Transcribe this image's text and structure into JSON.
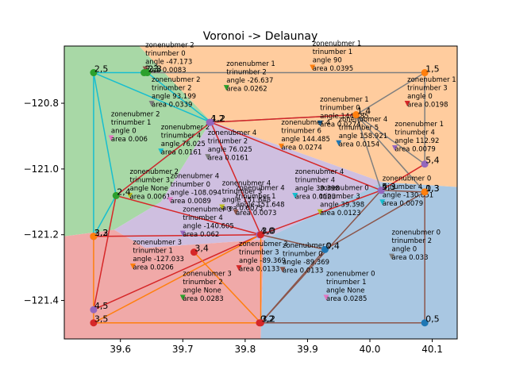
{
  "chart_data": {
    "type": "scatter",
    "title": "Voronoi -> Delaunay",
    "xlabel": "",
    "ylabel": "",
    "xlim": [
      39.51,
      40.14
    ],
    "ylim": [
      -121.517,
      -120.626
    ],
    "xticks": [
      "39.6",
      "39.7",
      "39.8",
      "39.9",
      "40.0",
      "40.1"
    ],
    "xtick_values": [
      39.6,
      39.7,
      39.8,
      39.9,
      40.0,
      40.1
    ],
    "yticks": [
      "−120.8",
      "−121.0",
      "−121.2",
      "−121.4"
    ],
    "ytick_values": [
      -120.8,
      -121.0,
      -121.2,
      -121.4
    ],
    "grid": false,
    "colors": {
      "region_green": "#a8d8a6",
      "region_orange": "#ffcc9e",
      "region_purple": "#cfbfe0",
      "region_red": "#f0a9a8",
      "region_blue": "#a9c7e2",
      "edge_cyan": "#17becf",
      "edge_gray": "#7f7f7f",
      "edge_red": "#d62728",
      "edge_orange": "#ff7f0e",
      "edge_brown": "#8c564b"
    },
    "regions": [
      {
        "color": "#a8d8a6",
        "poly": [
          [
            39.51,
            -120.626
          ],
          [
            39.63,
            -120.626
          ],
          [
            39.745,
            -120.855
          ],
          [
            39.665,
            -121.1
          ],
          [
            39.59,
            -121.185
          ],
          [
            39.51,
            -121.205
          ]
        ]
      },
      {
        "color": "#ffcc9e",
        "poly": [
          [
            39.63,
            -120.626
          ],
          [
            40.14,
            -120.626
          ],
          [
            40.14,
            -121.055
          ],
          [
            40.02,
            -121.04
          ],
          [
            39.745,
            -120.855
          ]
        ]
      },
      {
        "color": "#cfbfe0",
        "poly": [
          [
            39.745,
            -120.855
          ],
          [
            40.02,
            -121.04
          ],
          [
            39.83,
            -121.215
          ],
          [
            39.64,
            -121.24
          ],
          [
            39.59,
            -121.185
          ],
          [
            39.665,
            -121.1
          ]
        ]
      },
      {
        "color": "#f0a9a8",
        "poly": [
          [
            39.51,
            -121.205
          ],
          [
            39.59,
            -121.185
          ],
          [
            39.64,
            -121.24
          ],
          [
            39.83,
            -121.215
          ],
          [
            39.825,
            -121.517
          ],
          [
            39.51,
            -121.517
          ]
        ]
      },
      {
        "color": "#a9c7e2",
        "poly": [
          [
            39.83,
            -121.215
          ],
          [
            40.02,
            -121.04
          ],
          [
            40.14,
            -121.055
          ],
          [
            40.14,
            -121.517
          ],
          [
            39.825,
            -121.517
          ]
        ]
      }
    ],
    "points": [
      {
        "label": "2,5",
        "x": 39.557,
        "y": -120.707,
        "color": "#2ca02c",
        "marker": "circle"
      },
      {
        "label": "2,3",
        "x": 39.638,
        "y": -120.707,
        "color": "#2ca02c",
        "marker": "circle"
      },
      {
        "label": "2,3",
        "x": 39.643,
        "y": -120.707,
        "color": "#2ca02c",
        "marker": "circle"
      },
      {
        "label": "2,4",
        "x": 39.593,
        "y": -121.081,
        "color": "#2ca02c",
        "marker": "circle"
      },
      {
        "label": "2,2",
        "x": 39.557,
        "y": -121.205,
        "color": "#d62728",
        "marker": "circle"
      },
      {
        "label": "3,3",
        "x": 39.557,
        "y": -121.205,
        "color": "#ff7f0e",
        "marker": "circle"
      },
      {
        "label": "4,2",
        "x": 39.743,
        "y": -120.858,
        "color": "#9467bd",
        "marker": "circle"
      },
      {
        "label": "1,2",
        "x": 39.745,
        "y": -120.858,
        "color": "#9467bd",
        "marker": "circle"
      },
      {
        "label": "1,5",
        "x": 40.088,
        "y": -120.707,
        "color": "#ff7f0e",
        "marker": "circle"
      },
      {
        "label": "1,4",
        "x": 39.978,
        "y": -120.835,
        "color": "#ff7f0e",
        "marker": "circle"
      },
      {
        "label": "5,4",
        "x": 40.088,
        "y": -120.985,
        "color": "#9467bd",
        "marker": "circle"
      },
      {
        "label": "4,3",
        "x": 40.018,
        "y": -121.065,
        "color": "#9467bd",
        "marker": "circle"
      },
      {
        "label": "5,3",
        "x": 40.018,
        "y": -121.065,
        "color": "#9467bd",
        "marker": "circle"
      },
      {
        "label": "0,3",
        "x": 40.088,
        "y": -121.07,
        "color": "#ff7f0e",
        "marker": "circle"
      },
      {
        "label": "1,3",
        "x": 40.088,
        "y": -121.07,
        "color": "#ff7f0e",
        "marker": "circle"
      },
      {
        "label": "4,0",
        "x": 39.823,
        "y": -121.2,
        "color": "#9467bd",
        "marker": "circle"
      },
      {
        "label": "3,0",
        "x": 39.825,
        "y": -121.2,
        "color": "#d62728",
        "marker": "circle"
      },
      {
        "label": "0,4",
        "x": 39.928,
        "y": -121.245,
        "color": "#1f77b4",
        "marker": "circle"
      },
      {
        "label": "3,4",
        "x": 39.718,
        "y": -121.253,
        "color": "#d62728",
        "marker": "circle"
      },
      {
        "label": "4,5",
        "x": 39.557,
        "y": -121.428,
        "color": "#9467bd",
        "marker": "circle"
      },
      {
        "label": "3,5",
        "x": 39.557,
        "y": -121.468,
        "color": "#d62728",
        "marker": "circle"
      },
      {
        "label": "0,2",
        "x": 39.823,
        "y": -121.468,
        "color": "#d62728",
        "marker": "circle"
      },
      {
        "label": "3,2",
        "x": 39.825,
        "y": -121.468,
        "color": "#d62728",
        "marker": "circle"
      },
      {
        "label": "0,5",
        "x": 40.088,
        "y": -121.468,
        "color": "#1f77b4",
        "marker": "circle"
      }
    ],
    "annotations": [
      {
        "lines": [
          "zonenubmer 2",
          "trinumber 0",
          "angle -47.173",
          "area 0.0083"
        ],
        "x": 39.64,
        "y": -120.695,
        "marker_color": "#8c564b"
      },
      {
        "lines": [
          "zonenubmer 1",
          "trinumber 1",
          "angle 90",
          "area 0.0395"
        ],
        "x": 39.908,
        "y": -120.69,
        "marker_color": "#ff7f0e"
      },
      {
        "lines": [
          "zonenubmer 1",
          "trinumber 2",
          "angle -26.637",
          "area 0.0262"
        ],
        "x": 39.77,
        "y": -120.752,
        "marker_color": "#2ca02c"
      },
      {
        "lines": [
          "zonenubmer 2",
          "trinumber 2",
          "angle 93.199",
          "area 0.0339"
        ],
        "x": 39.65,
        "y": -120.8,
        "marker_color": "#7f7f7f"
      },
      {
        "lines": [
          "zonenubmer 1",
          "trinumber 3",
          "angle 0",
          "area 0.0198"
        ],
        "x": 40.06,
        "y": -120.8,
        "marker_color": "#d62728"
      },
      {
        "lines": [
          "zonenubmer 1",
          "trinumber 0",
          "angle 144.485",
          "area 0.0274"
        ],
        "x": 39.92,
        "y": -120.86,
        "marker_color": "#1f77b4"
      },
      {
        "lines": [
          "zonenubmer 4",
          "trinumber 5",
          "angle 158.921",
          "area 0.0154"
        ],
        "x": 39.95,
        "y": -120.92,
        "marker_color": "#1f77b4"
      },
      {
        "lines": [
          "zonenubmer 2",
          "trinumber 1",
          "angle 0",
          "area 0.006"
        ],
        "x": 39.585,
        "y": -120.905,
        "marker_color": "#e377c2"
      },
      {
        "lines": [
          "zonenubmer 1",
          "trinumber 4",
          "angle 112.92",
          "area 0.0079"
        ],
        "x": 40.04,
        "y": -120.935,
        "marker_color": "#9467bd"
      },
      {
        "lines": [
          "zonenubmer 4",
          "trinumber 6",
          "angle 144.485",
          "area 0.0274"
        ],
        "x": 39.858,
        "y": -120.93,
        "marker_color": "#ff7f0e"
      },
      {
        "lines": [
          "zonenubmer 2",
          "trinumber 4",
          "angle 76.025",
          "area 0.0161"
        ],
        "x": 39.665,
        "y": -120.945,
        "marker_color": "#17becf"
      },
      {
        "lines": [
          "zonenubmer 4",
          "trinumber 2",
          "angle 76.025",
          "area 0.0161"
        ],
        "x": 39.74,
        "y": -120.962,
        "marker_color": "#7f7f7f"
      },
      {
        "lines": [
          "zonenubmer 2",
          "trinumber 3",
          "angle None",
          "area 0.0061"
        ],
        "x": 39.615,
        "y": -121.08,
        "marker_color": "#bcbd22"
      },
      {
        "lines": [
          "zonenubmer 4",
          "trinumber 0",
          "angle -108.094",
          "area 0.0089"
        ],
        "x": 39.68,
        "y": -121.093,
        "marker_color": "#e377c2"
      },
      {
        "lines": [
          "zonenubmer 4",
          "trinumber 4",
          "angle 39.398",
          "area 0.0123"
        ],
        "x": 39.88,
        "y": -121.08,
        "marker_color": "#17becf"
      },
      {
        "lines": [
          "zonenubmer 0",
          "trinumber 3",
          "angle 39.398",
          "area 0.0123"
        ],
        "x": 39.92,
        "y": -121.13,
        "marker_color": "#bcbd22"
      },
      {
        "lines": [
          "zonenubmer 0",
          "trinumber 4",
          "angle -130.851",
          "area 0.0079"
        ],
        "x": 40.02,
        "y": -121.1,
        "marker_color": "#17becf"
      },
      {
        "lines": [
          "zonenubmer 4",
          "trinumber 3",
          "angle 151.648",
          "area 0.0073"
        ],
        "x": 39.763,
        "y": -121.115,
        "marker_color": "#bcbd22"
      },
      {
        "lines": [
          "zonenubmer 4",
          "trinumber 1",
          "angle 151.648",
          "area 0.0073"
        ],
        "x": 39.785,
        "y": -121.13,
        "marker_color": "#8c564b"
      },
      {
        "lines": [
          "zonenubmer 3",
          "trinumber 4",
          "angle -140.605",
          "area 0.062"
        ],
        "x": 39.7,
        "y": -121.195,
        "marker_color": "#9467bd"
      },
      {
        "lines": [
          "zonenubmer 3",
          "trinumber 1",
          "angle -127.033",
          "area 0.0206"
        ],
        "x": 39.62,
        "y": -121.295,
        "marker_color": "#ff7f0e"
      },
      {
        "lines": [
          "zonenubmer 3",
          "trinumber 3",
          "angle -89.369",
          "area 0.0133"
        ],
        "x": 39.79,
        "y": -121.3,
        "marker_color": "#d62728"
      },
      {
        "lines": [
          "zonenubmer 0",
          "trinumber 0",
          "angle -89.369",
          "area 0.0133"
        ],
        "x": 39.86,
        "y": -121.305,
        "marker_color": "#8c564b"
      },
      {
        "lines": [
          "zonenubmer 0",
          "trinumber 2",
          "angle 0",
          "area 0.033"
        ],
        "x": 40.035,
        "y": -121.265,
        "marker_color": "#7f7f7f"
      },
      {
        "lines": [
          "zonenubmer 3",
          "trinumber 2",
          "angle None",
          "area 0.0283"
        ],
        "x": 39.7,
        "y": -121.39,
        "marker_color": "#2ca02c"
      },
      {
        "lines": [
          "zonenubmer 0",
          "trinumber 1",
          "angle None",
          "area 0.0285"
        ],
        "x": 39.93,
        "y": -121.39,
        "marker_color": "#e377c2"
      }
    ],
    "edges": [
      {
        "color": "#17becf",
        "path": [
          [
            39.557,
            -120.707
          ],
          [
            39.643,
            -120.707
          ],
          [
            39.745,
            -120.858
          ],
          [
            39.557,
            -120.707
          ],
          [
            39.593,
            -121.081
          ],
          [
            39.745,
            -120.858
          ]
        ]
      },
      {
        "color": "#17becf",
        "path": [
          [
            39.557,
            -120.707
          ],
          [
            39.557,
            -121.205
          ]
        ]
      },
      {
        "color": "#17becf",
        "path": [
          [
            39.593,
            -121.081
          ],
          [
            39.557,
            -121.205
          ]
        ]
      },
      {
        "color": "#7f7f7f",
        "path": [
          [
            39.643,
            -120.707
          ],
          [
            40.088,
            -120.707
          ],
          [
            39.978,
            -120.835
          ],
          [
            39.745,
            -120.858
          ]
        ]
      },
      {
        "color": "#7f7f7f",
        "path": [
          [
            40.088,
            -120.707
          ],
          [
            40.088,
            -120.985
          ],
          [
            39.978,
            -120.835
          ],
          [
            40.088,
            -121.07
          ]
        ]
      },
      {
        "color": "#7f7f7f",
        "path": [
          [
            39.978,
            -120.835
          ],
          [
            40.018,
            -121.065
          ]
        ]
      },
      {
        "color": "#d62728",
        "path": [
          [
            39.745,
            -120.858
          ],
          [
            40.018,
            -121.065
          ],
          [
            39.825,
            -121.2
          ],
          [
            39.745,
            -120.858
          ],
          [
            39.593,
            -121.081
          ],
          [
            39.825,
            -121.2
          ]
        ]
      },
      {
        "color": "#d62728",
        "path": [
          [
            40.018,
            -121.065
          ],
          [
            40.088,
            -120.985
          ]
        ]
      },
      {
        "color": "#d62728",
        "path": [
          [
            39.745,
            -120.858
          ],
          [
            39.978,
            -120.835
          ]
        ]
      },
      {
        "color": "#d62728",
        "path": [
          [
            39.593,
            -121.081
          ],
          [
            39.557,
            -121.428
          ],
          [
            39.825,
            -121.2
          ]
        ]
      },
      {
        "color": "#d62728",
        "path": [
          [
            39.557,
            -121.205
          ],
          [
            39.825,
            -121.2
          ]
        ]
      },
      {
        "color": "#ff7f0e",
        "path": [
          [
            39.557,
            -121.205
          ],
          [
            39.557,
            -121.468
          ],
          [
            39.825,
            -121.468
          ],
          [
            39.825,
            -121.2
          ]
        ]
      },
      {
        "color": "#ff7f0e",
        "path": [
          [
            39.557,
            -121.468
          ],
          [
            39.825,
            -121.2
          ]
        ]
      },
      {
        "color": "#ff7f0e",
        "path": [
          [
            39.718,
            -121.253
          ],
          [
            39.825,
            -121.468
          ]
        ]
      },
      {
        "color": "#8c564b",
        "path": [
          [
            39.825,
            -121.2
          ],
          [
            39.928,
            -121.245
          ],
          [
            39.825,
            -121.468
          ],
          [
            40.088,
            -121.468
          ],
          [
            40.088,
            -121.07
          ],
          [
            39.928,
            -121.245
          ]
        ]
      },
      {
        "color": "#8c564b",
        "path": [
          [
            40.018,
            -121.065
          ],
          [
            40.088,
            -121.07
          ]
        ]
      },
      {
        "color": "#8c564b",
        "path": [
          [
            40.018,
            -121.065
          ],
          [
            39.825,
            -121.468
          ]
        ]
      }
    ]
  }
}
